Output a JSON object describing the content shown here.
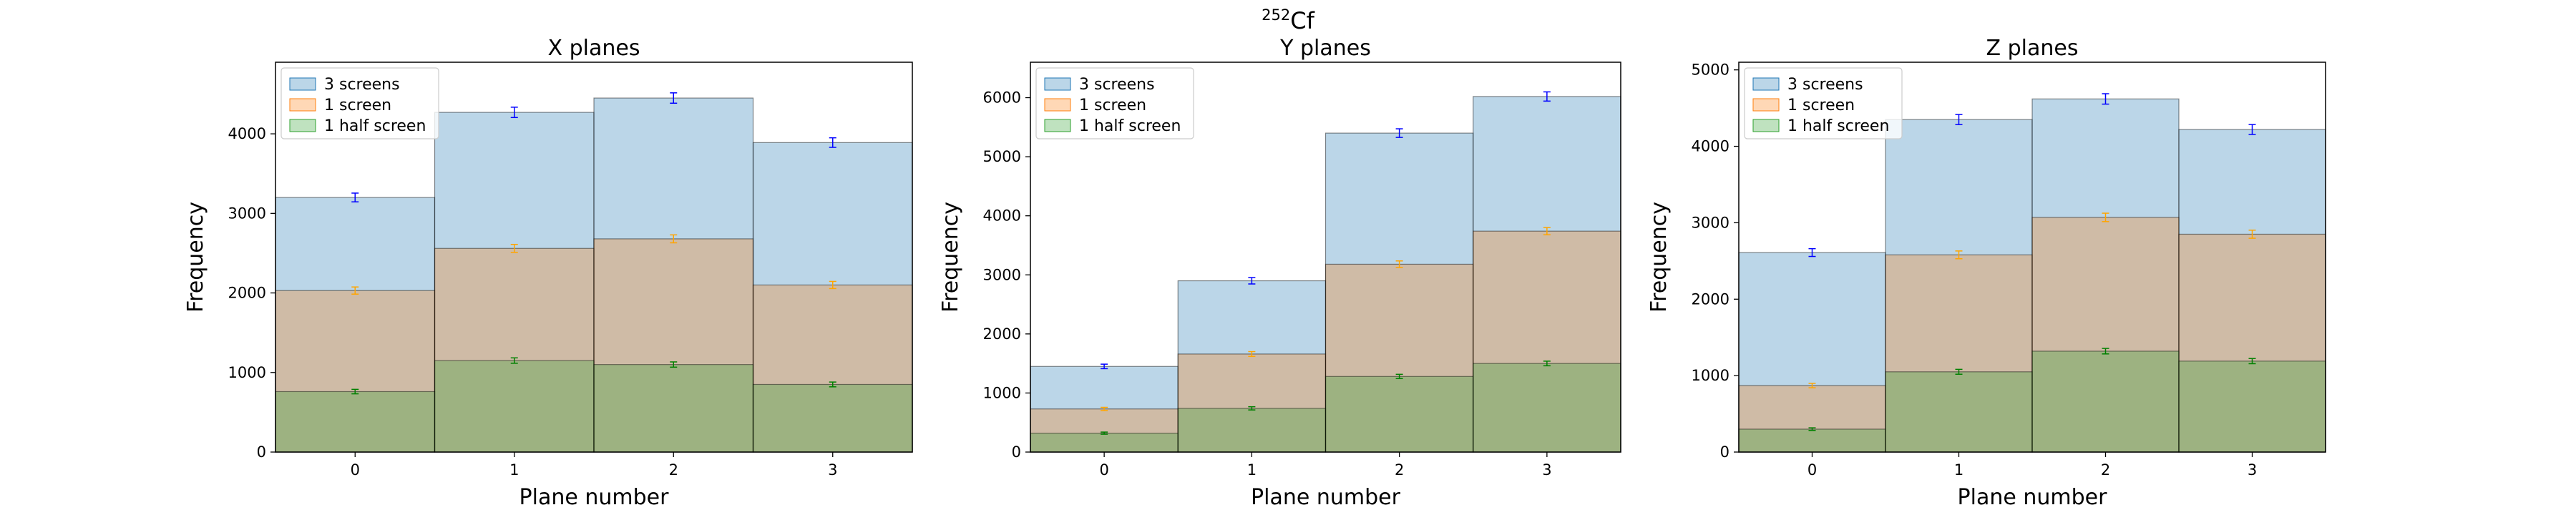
{
  "figure": {
    "title_superscript": "252",
    "title_main": "Cf"
  },
  "chart_data": [
    {
      "type": "bar",
      "title": "X planes",
      "xlabel": "Plane number",
      "ylabel": "Frequency",
      "categories": [
        "0",
        "1",
        "2",
        "3"
      ],
      "xlim": [
        -0.5,
        3.5
      ],
      "ylim": [
        0,
        4900
      ],
      "yticks": [
        0,
        1000,
        2000,
        3000,
        4000
      ],
      "grid": false,
      "legend_position": "top-left",
      "series": [
        {
          "name": "3 screens",
          "values": [
            3200,
            4270,
            4450,
            3890
          ],
          "errors": [
            55,
            65,
            65,
            60
          ]
        },
        {
          "name": "1 screen",
          "values": [
            2030,
            2560,
            2680,
            2100
          ],
          "errors": [
            45,
            50,
            50,
            45
          ]
        },
        {
          "name": "1 half screen",
          "values": [
            760,
            1150,
            1100,
            850
          ],
          "errors": [
            28,
            34,
            33,
            30
          ]
        }
      ]
    },
    {
      "type": "bar",
      "title": "Y planes",
      "xlabel": "Plane number",
      "ylabel": "Frequency",
      "categories": [
        "0",
        "1",
        "2",
        "3"
      ],
      "xlim": [
        -0.5,
        3.5
      ],
      "ylim": [
        0,
        6600
      ],
      "yticks": [
        0,
        1000,
        2000,
        3000,
        4000,
        5000,
        6000
      ],
      "grid": false,
      "legend_position": "top-left",
      "series": [
        {
          "name": "3 screens",
          "values": [
            1450,
            2900,
            5400,
            6020
          ],
          "errors": [
            38,
            54,
            73,
            78
          ]
        },
        {
          "name": "1 screen",
          "values": [
            730,
            1660,
            3180,
            3740
          ],
          "errors": [
            27,
            41,
            56,
            61
          ]
        },
        {
          "name": "1 half screen",
          "values": [
            320,
            740,
            1280,
            1500
          ],
          "errors": [
            18,
            27,
            36,
            39
          ]
        }
      ]
    },
    {
      "type": "bar",
      "title": "Z planes",
      "xlabel": "Plane number",
      "ylabel": "Frequency",
      "categories": [
        "0",
        "1",
        "2",
        "3"
      ],
      "xlim": [
        -0.5,
        3.5
      ],
      "ylim": [
        0,
        5100
      ],
      "yticks": [
        0,
        1000,
        2000,
        3000,
        4000,
        5000
      ],
      "grid": false,
      "legend_position": "top-left",
      "series": [
        {
          "name": "3 screens",
          "values": [
            2610,
            4350,
            4620,
            4220
          ],
          "errors": [
            51,
            66,
            68,
            65
          ]
        },
        {
          "name": "1 screen",
          "values": [
            870,
            2580,
            3070,
            2850
          ],
          "errors": [
            29,
            51,
            55,
            53
          ]
        },
        {
          "name": "1 half screen",
          "values": [
            300,
            1050,
            1320,
            1190
          ],
          "errors": [
            17,
            32,
            36,
            34
          ]
        }
      ]
    }
  ],
  "colors": {
    "series_fill": [
      "#1f77b4",
      "#ff7f0e",
      "#2ca02c"
    ],
    "series_fill_opacity": 0.3,
    "error_bars": [
      "#0000ff",
      "#ffa500",
      "#008000"
    ],
    "axes": "#000000"
  }
}
